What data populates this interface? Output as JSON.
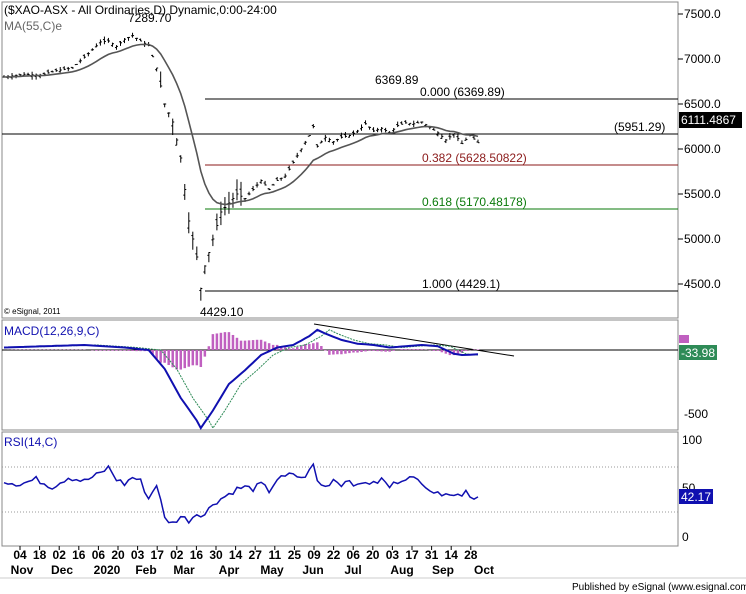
{
  "chart_data": [
    {
      "type": "candlestick",
      "title": "($XAO-ASX - All Ordinaries,D) Dynamic,0:00-24:00",
      "indicator_label": "MA(55,C)e",
      "copyright": "© eSignal, 2011",
      "yticks": [
        "7500.0",
        "7000.0",
        "6500.0",
        "6000.0",
        "5500.0",
        "5000.0",
        "4500.0"
      ],
      "ytick_values": [
        7500,
        7000,
        6500,
        6000,
        5500,
        5000,
        4500
      ],
      "ylim": [
        4300,
        7560
      ],
      "last_price_tag": "6111.4867",
      "peak_label": "7289.70",
      "trough_label": "4429.10",
      "high_label": "6369.89",
      "support_label": "(5951.29)",
      "fib_levels": [
        {
          "label": "0.000 (6369.89)",
          "value": 6369.89,
          "color": "#000000"
        },
        {
          "label": "0.382 (5628.50822)",
          "value": 5628.50822,
          "color": "#8b1a1a"
        },
        {
          "label": "0.618 (5170.48178)",
          "value": 5170.48178,
          "color": "#0a7a0a"
        },
        {
          "label": "1.000 (4429.1)",
          "value": 4429.1,
          "color": "#000000"
        }
      ],
      "support_value": 5951.29,
      "price_anchors": [
        [
          0,
          6800
        ],
        [
          5,
          6830
        ],
        [
          9,
          6820
        ],
        [
          13,
          6870
        ],
        [
          17,
          6900
        ],
        [
          21,
          7060
        ],
        [
          24,
          7190
        ],
        [
          26,
          7200
        ],
        [
          28,
          7140
        ],
        [
          30,
          7220
        ],
        [
          32,
          7260
        ],
        [
          34,
          7200
        ],
        [
          36,
          7150
        ],
        [
          38,
          6900
        ],
        [
          40,
          6500
        ],
        [
          42,
          6300
        ],
        [
          44,
          5900
        ],
        [
          46,
          5200
        ],
        [
          48,
          4800
        ],
        [
          49,
          4450
        ],
        [
          50,
          4700
        ],
        [
          52,
          5000
        ],
        [
          54,
          5300
        ],
        [
          56,
          5400
        ],
        [
          58,
          5500
        ],
        [
          60,
          5450
        ],
        [
          62,
          5550
        ],
        [
          64,
          5650
        ],
        [
          66,
          5550
        ],
        [
          68,
          5650
        ],
        [
          70,
          5700
        ],
        [
          72,
          5850
        ],
        [
          74,
          6000
        ],
        [
          76,
          6150
        ],
        [
          77,
          6250
        ],
        [
          78,
          6030
        ],
        [
          80,
          6130
        ],
        [
          82,
          6080
        ],
        [
          84,
          6130
        ],
        [
          86,
          6150
        ],
        [
          88,
          6200
        ],
        [
          90,
          6280
        ],
        [
          92,
          6200
        ],
        [
          94,
          6230
        ],
        [
          96,
          6180
        ],
        [
          98,
          6260
        ],
        [
          100,
          6290
        ],
        [
          102,
          6280
        ],
        [
          104,
          6300
        ],
        [
          106,
          6240
        ],
        [
          108,
          6180
        ],
        [
          110,
          6100
        ],
        [
          112,
          6170
        ],
        [
          114,
          6060
        ],
        [
          116,
          6150
        ],
        [
          118,
          6070
        ]
      ]
    },
    {
      "type": "line",
      "title": "MACD(12,26,9,C)",
      "yticks": [
        "-500"
      ],
      "last_value_tag": "-33.98",
      "macd_anchors": [
        [
          0,
          20
        ],
        [
          10,
          30
        ],
        [
          20,
          40
        ],
        [
          30,
          20
        ],
        [
          36,
          0
        ],
        [
          40,
          -150
        ],
        [
          44,
          -380
        ],
        [
          48,
          -560
        ],
        [
          49,
          -620
        ],
        [
          52,
          -480
        ],
        [
          56,
          -270
        ],
        [
          60,
          -160
        ],
        [
          64,
          -40
        ],
        [
          68,
          20
        ],
        [
          72,
          40
        ],
        [
          76,
          110
        ],
        [
          78,
          160
        ],
        [
          80,
          130
        ],
        [
          84,
          80
        ],
        [
          88,
          50
        ],
        [
          92,
          40
        ],
        [
          96,
          20
        ],
        [
          100,
          30
        ],
        [
          104,
          40
        ],
        [
          108,
          30
        ],
        [
          112,
          -30
        ],
        [
          114,
          -40
        ],
        [
          118,
          -34
        ]
      ]
    },
    {
      "type": "line",
      "title": "RSI(14,C)",
      "yticks": [
        "100",
        "50",
        "0"
      ],
      "ylim": [
        0,
        100
      ],
      "last_value_tag": "42.17",
      "rsi_anchors": [
        [
          0,
          58
        ],
        [
          4,
          55
        ],
        [
          8,
          60
        ],
        [
          12,
          52
        ],
        [
          16,
          62
        ],
        [
          20,
          58
        ],
        [
          24,
          66
        ],
        [
          26,
          72
        ],
        [
          28,
          60
        ],
        [
          30,
          55
        ],
        [
          32,
          62
        ],
        [
          34,
          58
        ],
        [
          36,
          40
        ],
        [
          38,
          55
        ],
        [
          40,
          20
        ],
        [
          42,
          15
        ],
        [
          44,
          22
        ],
        [
          46,
          18
        ],
        [
          48,
          25
        ],
        [
          50,
          24
        ],
        [
          52,
          35
        ],
        [
          54,
          40
        ],
        [
          56,
          45
        ],
        [
          58,
          50
        ],
        [
          60,
          52
        ],
        [
          62,
          50
        ],
        [
          64,
          55
        ],
        [
          66,
          48
        ],
        [
          68,
          60
        ],
        [
          70,
          62
        ],
        [
          72,
          66
        ],
        [
          74,
          60
        ],
        [
          76,
          68
        ],
        [
          77,
          75
        ],
        [
          78,
          58
        ],
        [
          80,
          52
        ],
        [
          82,
          60
        ],
        [
          84,
          55
        ],
        [
          86,
          60
        ],
        [
          88,
          52
        ],
        [
          90,
          58
        ],
        [
          92,
          55
        ],
        [
          94,
          60
        ],
        [
          96,
          52
        ],
        [
          98,
          58
        ],
        [
          100,
          62
        ],
        [
          102,
          60
        ],
        [
          104,
          58
        ],
        [
          106,
          50
        ],
        [
          108,
          44
        ],
        [
          110,
          48
        ],
        [
          112,
          43
        ],
        [
          114,
          45
        ],
        [
          115,
          50
        ],
        [
          116,
          42
        ],
        [
          118,
          42
        ]
      ]
    }
  ],
  "xaxis": {
    "day_labels": [
      "04",
      "18",
      "02",
      "16",
      "06",
      "20",
      "03",
      "17",
      "02",
      "16",
      "30",
      "14",
      "27",
      "11",
      "25",
      "09",
      "22",
      "06",
      "20",
      "03",
      "17",
      "31",
      "14",
      "28"
    ],
    "month_labels": [
      "Nov",
      "Dec",
      "2020",
      "Feb",
      "Mar",
      "Apr",
      "May",
      "Jun",
      "Jul",
      "Aug",
      "Sep",
      "Oct"
    ]
  },
  "footer": "Published by eSignal (www.esignal.com)",
  "colors": {
    "accent": "#1010b0",
    "price_tag": "#000000",
    "macd_tag": "#2e8b57",
    "rsi_tag": "#1010b0",
    "histogram": "#c060c0",
    "signal": "#2e8b57"
  }
}
